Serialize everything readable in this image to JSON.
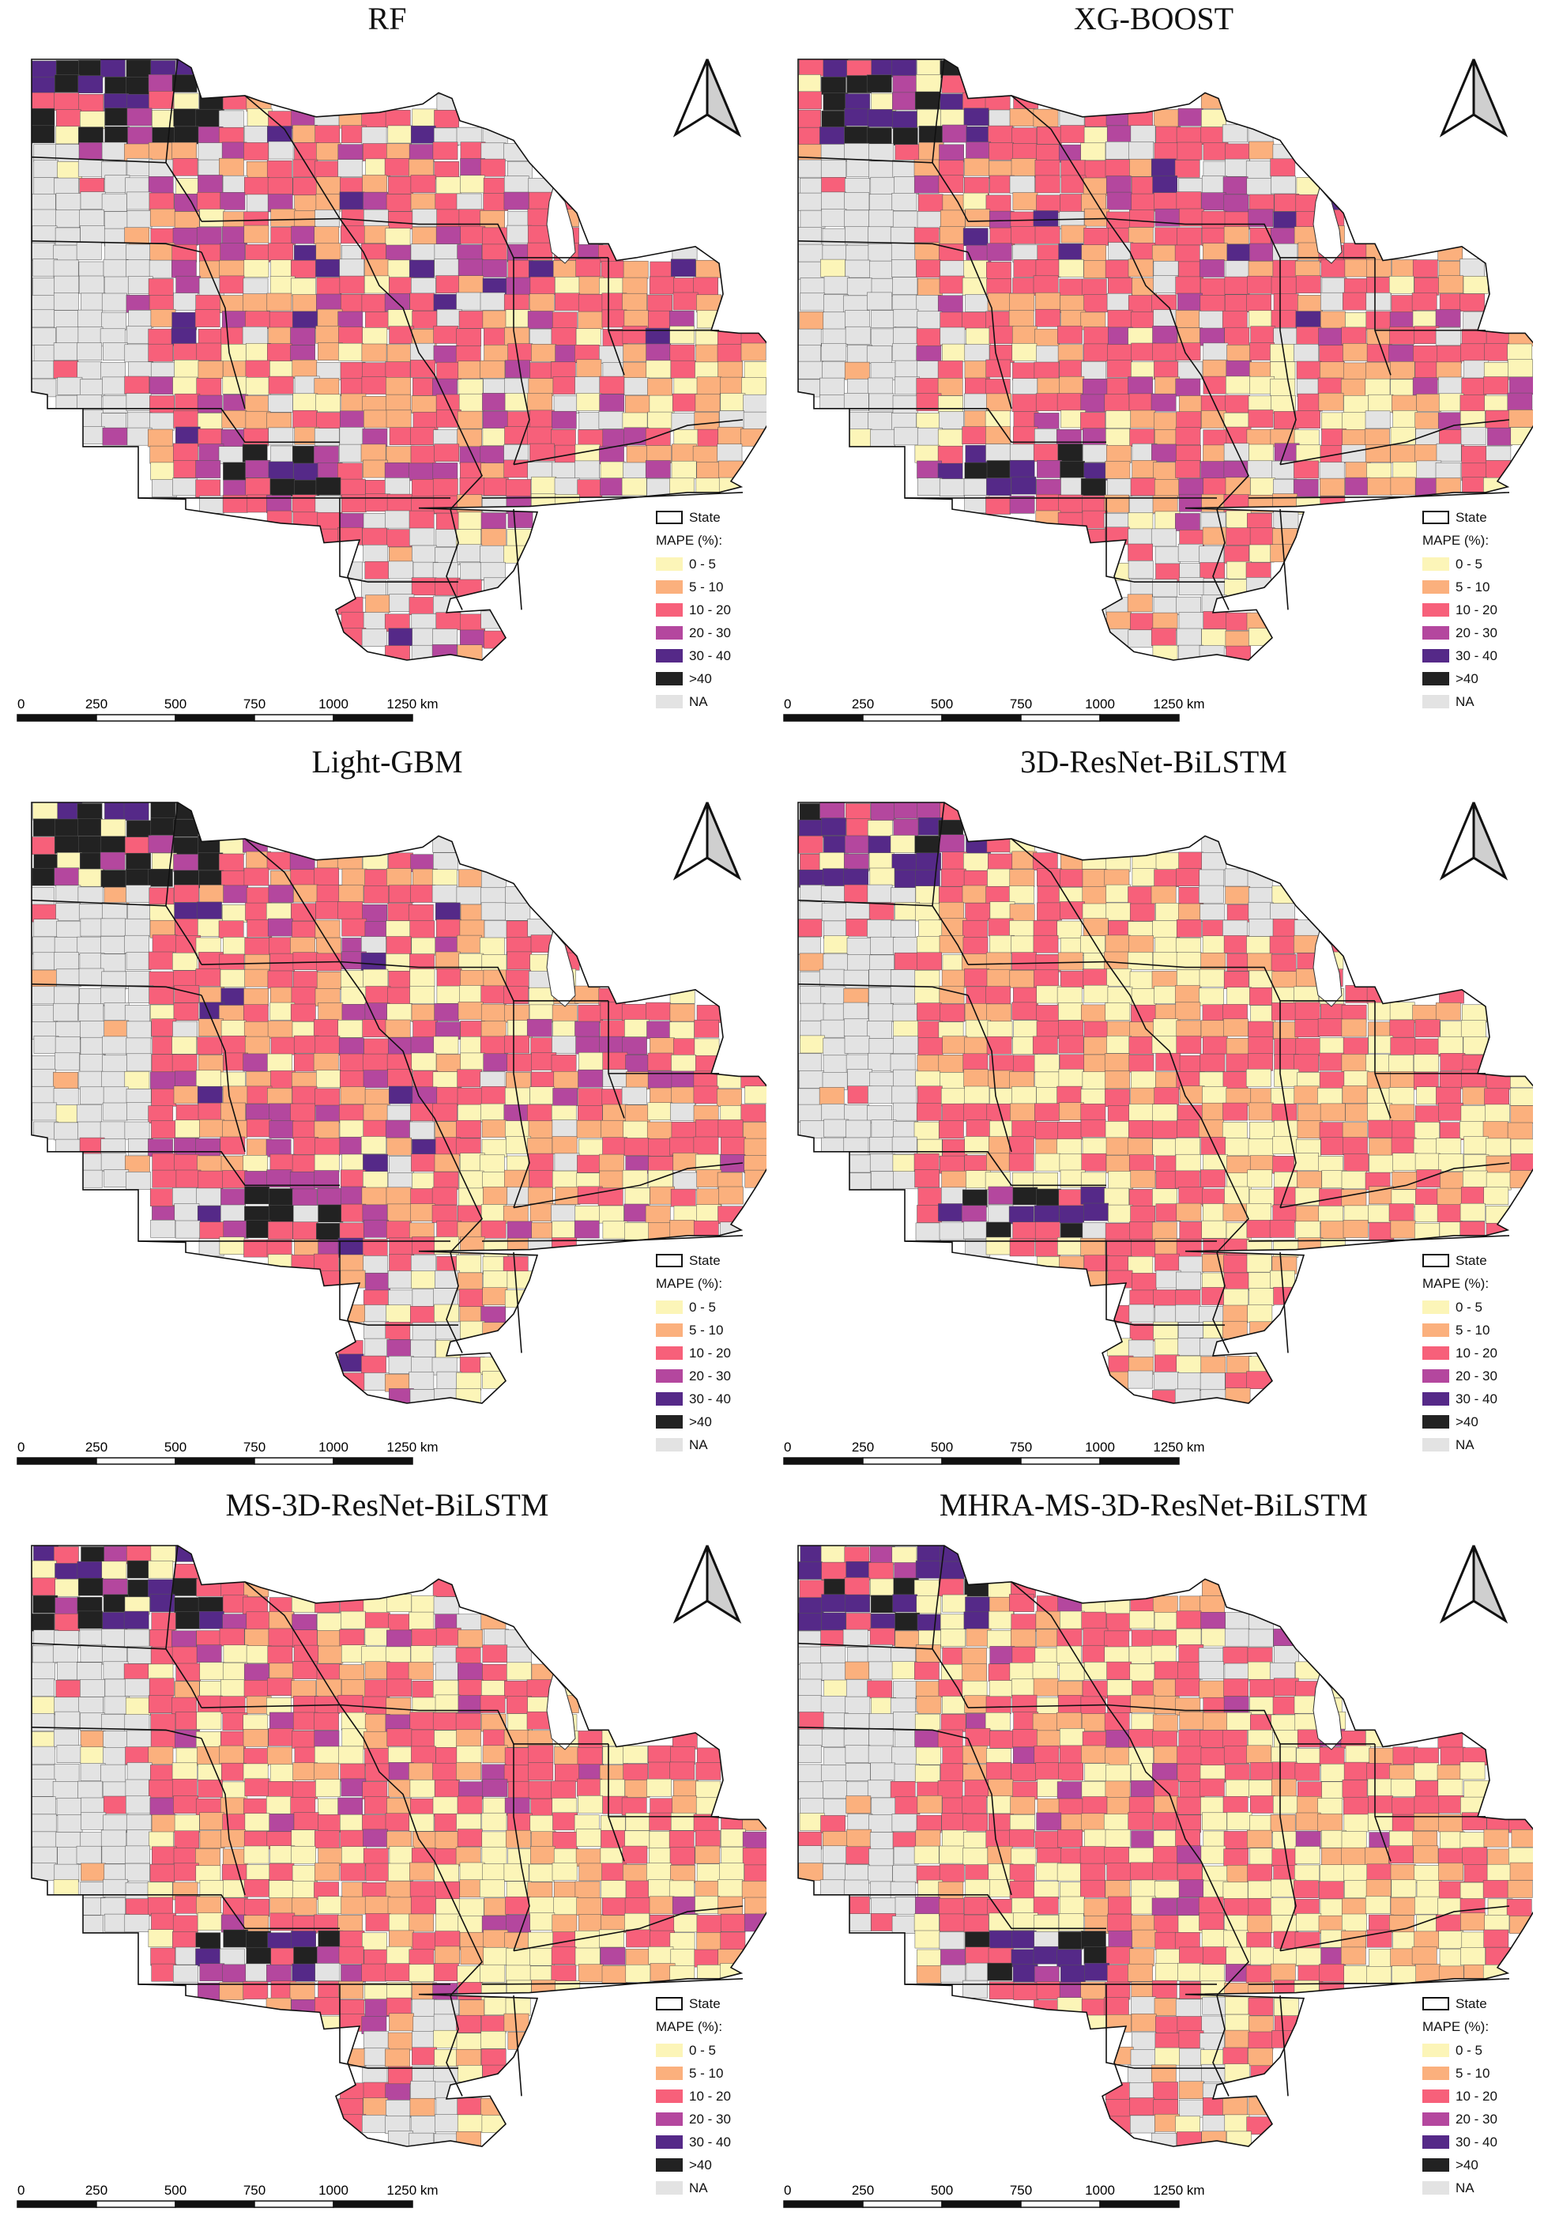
{
  "panels": [
    {
      "title": "RF",
      "variant": 0
    },
    {
      "title": "XG-BOOST",
      "variant": 1
    },
    {
      "title": "Light-GBM",
      "variant": 2
    },
    {
      "title": "3D-ResNet-BiLSTM",
      "variant": 3
    },
    {
      "title": "MS-3D-ResNet-BiLSTM",
      "variant": 4
    },
    {
      "title": "MHRA-MS-3D-ResNet-BiLSTM",
      "variant": 5
    }
  ],
  "legend": {
    "state_label": "State",
    "heading": "MAPE (%):",
    "classes": [
      {
        "label": "0 - 5",
        "color": "#fcf5b8"
      },
      {
        "label": "5 - 10",
        "color": "#fbb07d"
      },
      {
        "label": "10 - 20",
        "color": "#f7607a"
      },
      {
        "label": "20 - 30",
        "color": "#b4479e"
      },
      {
        "label": "30 - 40",
        "color": "#552988"
      },
      {
        "label": ">40",
        "color": "#222222"
      },
      {
        "label": "NA",
        "color": "#e3e3e3"
      }
    ]
  },
  "scale_bar": {
    "ticks": [
      "0",
      "250",
      "500",
      "750",
      "1000",
      "1250 km"
    ]
  },
  "north_arrow": "north-arrow-icon",
  "colors": {
    "state_border": "#111111",
    "county_border": "#555555",
    "water": "#ffffff"
  }
}
